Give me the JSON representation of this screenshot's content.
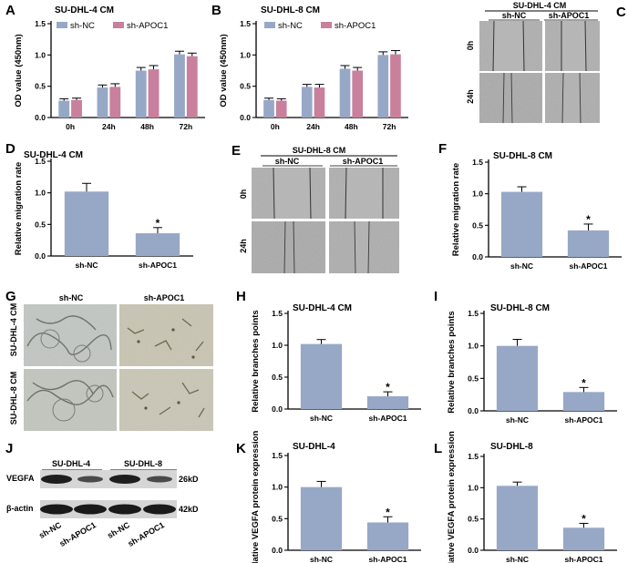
{
  "panel_labels": {
    "a": "A",
    "b": "B",
    "c": "C",
    "d": "D",
    "e": "E",
    "f": "F",
    "g": "G",
    "h": "H",
    "i": "I",
    "j": "J",
    "k": "K",
    "l": "L"
  },
  "colors": {
    "blue": "#97a8c7",
    "pink": "#c8809c",
    "axis": "#000000"
  },
  "chart_data": [
    {
      "id": "A",
      "type": "bar",
      "title": "SU-DHL-4 CM",
      "ylabel": "OD value (450nm)",
      "ylim": [
        0,
        1.5
      ],
      "yticks": [
        "0.0",
        "0.5",
        "1.0",
        "1.5"
      ],
      "categories": [
        "0h",
        "24h",
        "48h",
        "72h"
      ],
      "series": [
        {
          "name": "sh-NC",
          "values": [
            0.27,
            0.48,
            0.75,
            1.01
          ],
          "errors": [
            0.03,
            0.04,
            0.05,
            0.05
          ]
        },
        {
          "name": "sh-APOC1",
          "values": [
            0.28,
            0.49,
            0.77,
            0.98
          ],
          "errors": [
            0.03,
            0.05,
            0.06,
            0.05
          ]
        }
      ]
    },
    {
      "id": "B",
      "type": "bar",
      "title": "SU-DHL-8 CM",
      "ylabel": "OD value (450nm)",
      "ylim": [
        0,
        1.5
      ],
      "yticks": [
        "0.0",
        "0.5",
        "1.0",
        "1.5"
      ],
      "categories": [
        "0h",
        "24h",
        "48h",
        "72h"
      ],
      "series": [
        {
          "name": "sh-NC",
          "values": [
            0.28,
            0.49,
            0.78,
            1.0
          ],
          "errors": [
            0.03,
            0.04,
            0.05,
            0.05
          ]
        },
        {
          "name": "sh-APOC1",
          "values": [
            0.27,
            0.48,
            0.75,
            1.01
          ],
          "errors": [
            0.03,
            0.05,
            0.05,
            0.06
          ]
        }
      ]
    },
    {
      "id": "D",
      "type": "bar",
      "title": "SU-DHL-4 CM",
      "ylabel": "Relative migration rate",
      "ylim": [
        0,
        1.5
      ],
      "yticks": [
        "0.0",
        "0.5",
        "1.0",
        "1.5"
      ],
      "categories": [
        "sh-NC",
        "sh-APOC1"
      ],
      "values": [
        1.02,
        0.36
      ],
      "errors": [
        0.13,
        0.09
      ],
      "significance": [
        "",
        "*"
      ]
    },
    {
      "id": "F",
      "type": "bar",
      "title": "SU-DHL-8 CM",
      "ylabel": "Relative migration rate",
      "ylim": [
        0,
        1.5
      ],
      "yticks": [
        "0.0",
        "0.5",
        "1.0",
        "1.5"
      ],
      "categories": [
        "sh-NC",
        "sh-APOC1"
      ],
      "values": [
        1.03,
        0.42
      ],
      "errors": [
        0.08,
        0.1
      ],
      "significance": [
        "",
        "*"
      ]
    },
    {
      "id": "H",
      "type": "bar",
      "title": "SU-DHL-4 CM",
      "ylabel": "Relative branches points",
      "ylim": [
        0,
        1.5
      ],
      "yticks": [
        "0.0",
        "0.5",
        "1.0",
        "1.5"
      ],
      "categories": [
        "sh-NC",
        "sh-APOC1"
      ],
      "values": [
        1.02,
        0.2
      ],
      "errors": [
        0.07,
        0.07
      ],
      "significance": [
        "",
        "*"
      ]
    },
    {
      "id": "I",
      "type": "bar",
      "title": "SU-DHL-8 CM",
      "ylabel": "Relative branches points",
      "ylim": [
        0,
        1.5
      ],
      "yticks": [
        "0.0",
        "0.5",
        "1.0",
        "1.5"
      ],
      "categories": [
        "sh-NC",
        "sh-APOC1"
      ],
      "values": [
        1.0,
        0.29
      ],
      "errors": [
        0.1,
        0.07
      ],
      "significance": [
        "",
        "*"
      ]
    },
    {
      "id": "K",
      "type": "bar",
      "title": "SU-DHL-4",
      "ylabel": "Relative VEGFA protein expression",
      "ylim": [
        0,
        1.5
      ],
      "yticks": [
        "0.0",
        "0.5",
        "1.0",
        "1.5"
      ],
      "categories": [
        "sh-NC",
        "sh-APOC1"
      ],
      "values": [
        1.0,
        0.44
      ],
      "errors": [
        0.09,
        0.09
      ],
      "significance": [
        "",
        "*"
      ]
    },
    {
      "id": "L",
      "type": "bar",
      "title": "SU-DHL-8",
      "ylabel": "Relative VEGFA protein expression",
      "ylim": [
        0,
        1.5
      ],
      "yticks": [
        "0.0",
        "0.5",
        "1.0",
        "1.5"
      ],
      "categories": [
        "sh-NC",
        "sh-APOC1"
      ],
      "values": [
        1.03,
        0.36
      ],
      "errors": [
        0.06,
        0.07
      ],
      "significance": [
        "",
        "*"
      ]
    }
  ],
  "wound_c": {
    "title": "SU-DHL-4 CM",
    "cols": [
      "sh-NC",
      "sh-APOC1"
    ],
    "rows": [
      "0h",
      "24h"
    ]
  },
  "wound_e": {
    "title": "SU-DHL-8 CM",
    "cols": [
      "sh-NC",
      "sh-APOC1"
    ],
    "rows": [
      "0h",
      "24h"
    ]
  },
  "tube_g": {
    "cols": [
      "sh-NC",
      "sh-APOC1"
    ],
    "rows": [
      "SU-DHL-4 CM",
      "SU-DHL-8 CM"
    ]
  },
  "blot_j": {
    "groups": [
      "SU-DHL-4",
      "SU-DHL-8"
    ],
    "proteins": [
      {
        "name": "VEGFA",
        "size": "26kD"
      },
      {
        "name": "β-actin",
        "size": "42kD"
      }
    ],
    "lanes": [
      "sh-NC",
      "sh-APOC1",
      "sh-NC",
      "sh-APOC1"
    ]
  }
}
